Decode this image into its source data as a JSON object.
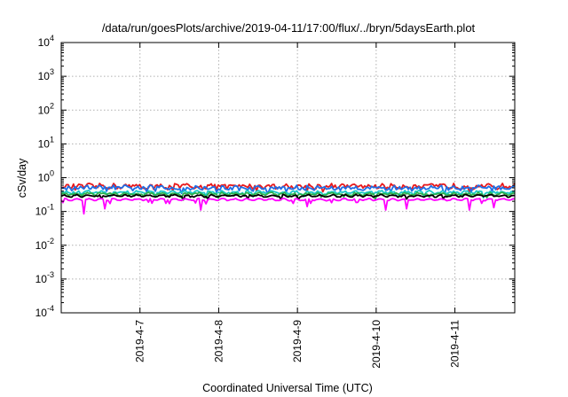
{
  "chart_data": {
    "type": "line",
    "title": "/data/run/goesPlots/archive/2019-04-11/17:00/flux/../bryn/5daysEarth.plot",
    "xlabel": "Coordinated Universal Time (UTC)",
    "ylabel": "cSv/day",
    "yscale": "log",
    "ylim": [
      0.0001,
      10000
    ],
    "xlim": [
      0,
      5.76
    ],
    "y_ticks": [
      {
        "value": 0.0001,
        "base": "10",
        "exp": "-4"
      },
      {
        "value": 0.001,
        "base": "10",
        "exp": "-3"
      },
      {
        "value": 0.01,
        "base": "10",
        "exp": "-2"
      },
      {
        "value": 0.1,
        "base": "10",
        "exp": "-1"
      },
      {
        "value": 1,
        "base": "10",
        "exp": "0"
      },
      {
        "value": 10,
        "base": "10",
        "exp": "1"
      },
      {
        "value": 100,
        "base": "10",
        "exp": "2"
      },
      {
        "value": 1000,
        "base": "10",
        "exp": "3"
      },
      {
        "value": 10000,
        "base": "10",
        "exp": "4"
      }
    ],
    "x_ticks": [
      {
        "value": 1,
        "label": "2019-4-7"
      },
      {
        "value": 2,
        "label": "2019-4-8"
      },
      {
        "value": 3,
        "label": "2019-4-9"
      },
      {
        "value": 4,
        "label": "2019-4-10"
      },
      {
        "value": 5,
        "label": "2019-4-11"
      }
    ],
    "grid": true,
    "series": [
      {
        "color": "#e8191c",
        "base": 0.56,
        "variation": 0.16
      },
      {
        "color": "#1f6fe6",
        "base": 0.5,
        "variation": 0.15
      },
      {
        "color": "#19c8c8",
        "base": 0.37,
        "variation": 0.08
      },
      {
        "color": "#2bb24c",
        "base": 0.33,
        "variation": 0.07
      },
      {
        "color": "#000000",
        "base": 0.29,
        "variation": 0.05
      },
      {
        "color": "#ff00ff",
        "base": 0.225,
        "variation": 0.03,
        "dips": [
          {
            "x": 0.28,
            "y": 0.085
          },
          {
            "x": 0.55,
            "y": 0.12
          },
          {
            "x": 1.78,
            "y": 0.11
          },
          {
            "x": 3.12,
            "y": 0.14
          },
          {
            "x": 4.12,
            "y": 0.11
          },
          {
            "x": 4.38,
            "y": 0.12
          },
          {
            "x": 5.18,
            "y": 0.11
          },
          {
            "x": 5.5,
            "y": 0.13
          }
        ]
      }
    ]
  }
}
